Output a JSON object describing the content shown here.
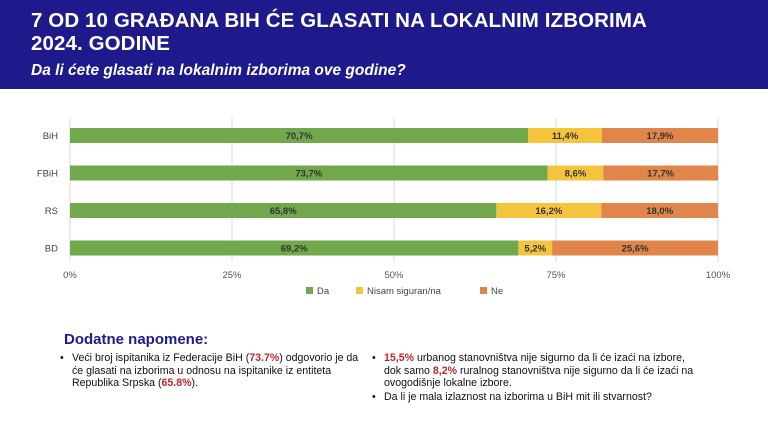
{
  "header": {
    "title_line1": "7 OD 10 GRAĐANA BIH ĆE GLASATI NA LOKALNIM IZBORIMA",
    "title_line2": "2024. GODINE",
    "subtitle": "Da li ćete glasati na lokalnim izborima ove godine?"
  },
  "colors": {
    "header_bg": "#1f1a8c",
    "da": "#70a84b",
    "nisam": "#f4c53c",
    "ne": "#e0864a",
    "highlight": "#c0272d"
  },
  "chart_data": {
    "type": "bar",
    "orientation": "horizontal",
    "stacked": true,
    "categories": [
      "BiH",
      "FBiH",
      "RS",
      "BD"
    ],
    "series": [
      {
        "name": "Da",
        "values": [
          70.7,
          73.7,
          65.8,
          69.2
        ],
        "labels": [
          "70,7%",
          "73,7%",
          "65,8%",
          "69,2%"
        ]
      },
      {
        "name": "Nisam siguran/na",
        "values": [
          11.4,
          8.6,
          16.2,
          5.2
        ],
        "labels": [
          "11,4%",
          "8,6%",
          "16,2%",
          "5,2%"
        ]
      },
      {
        "name": "Ne",
        "values": [
          17.9,
          17.7,
          18.0,
          25.6
        ],
        "labels": [
          "17,9%",
          "17,7%",
          "18,0%",
          "25,6%"
        ]
      }
    ],
    "xlim": [
      0,
      100
    ],
    "xticks": [
      "0%",
      "25%",
      "50%",
      "75%",
      "100%"
    ],
    "grid": true,
    "legend_position": "bottom"
  },
  "notes": {
    "title": "Dodatne napomene:",
    "left": {
      "bullet": "•",
      "t1": "Veći broj ispitanika iz Federacije BiH (",
      "h1": "73.7%",
      "t2": ") odgovorio je da će glasati na izborima u odnosu na ispitanike iz entiteta Republika Srpska (",
      "h2": "65.8%",
      "t3": ")."
    },
    "right": [
      {
        "bullet": "•",
        "h1": "15,5%",
        "t1": " urbanog stanovništva nije sigurno da li će izaći na izbore, dok samo ",
        "h2": "8,2%",
        "t2": " ruralnog stanovništva nije sigurno da li će izaći na ovogodišnje lokalne izbore."
      },
      {
        "bullet": "•",
        "t1": "Da li je mala izlaznost na izborima u BiH mit ili stvarnost?"
      }
    ]
  }
}
